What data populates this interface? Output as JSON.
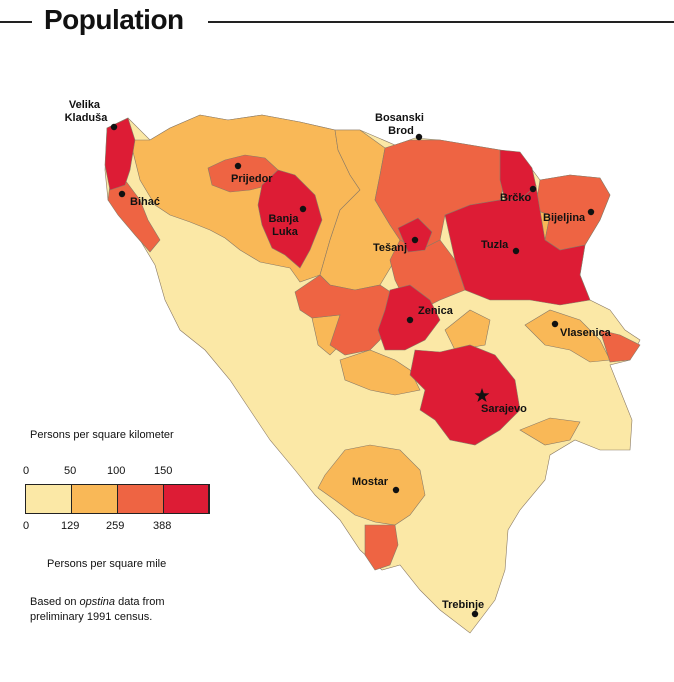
{
  "title": "Population",
  "colors": {
    "class1": "#fbe8a6",
    "class2": "#f9b857",
    "class3": "#ee6443",
    "class4": "#dd1c35",
    "border": "#8a7a66"
  },
  "cities": {
    "velika_kladusa": "Velika\nKladuša",
    "bihac": "Bihać",
    "prijedor": "Prijedor",
    "banja_luka": "Banja\nLuka",
    "bosanski_brod": "Bosanski\nBrod",
    "brcko": "Brčko",
    "bijeljina": "Bijeljina",
    "tesanj": "Tešanj",
    "tuzla": "Tuzla",
    "zenica": "Zenica",
    "vlasenica": "Vlasenica",
    "sarajevo": "Sarajevo",
    "mostar": "Mostar",
    "trebinje": "Trebinje"
  },
  "legend": {
    "km_title": "Persons per square kilometer",
    "km_ticks": [
      "0",
      "50",
      "100",
      "150"
    ],
    "mi_ticks": [
      "0",
      "129",
      "259",
      "388"
    ],
    "mi_title": "Persons per square mile",
    "note_prefix": "Based on ",
    "note_italic": "opstina",
    "note_suffix": " data from",
    "note_line2": "preliminary 1991 census."
  }
}
